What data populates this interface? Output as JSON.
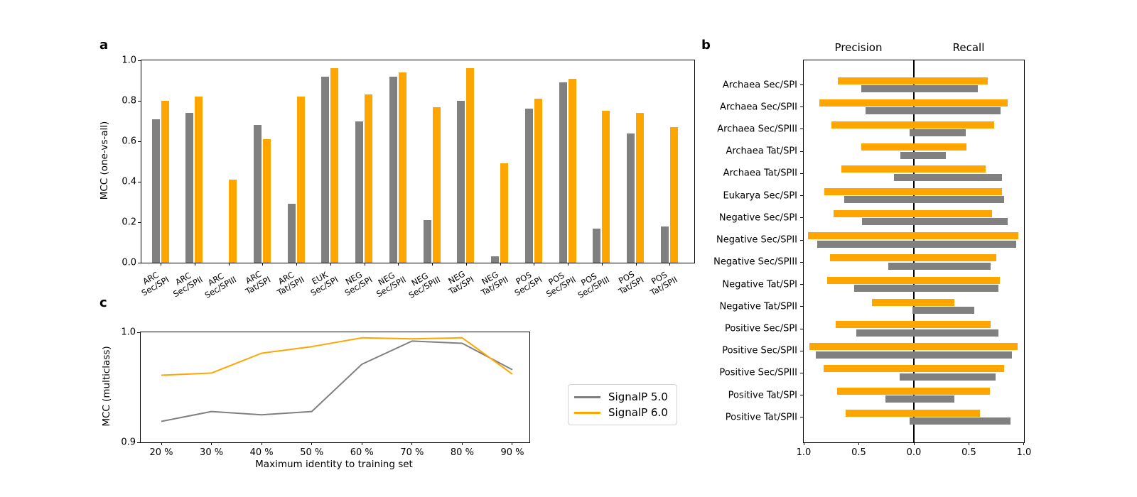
{
  "colors": {
    "signalp5": "#808080",
    "signalp6": "#FFA500",
    "axis": "#000000",
    "background": "#ffffff",
    "legend_border": "#d2d2d2"
  },
  "legend": {
    "items": [
      {
        "label": "SignalP 5.0",
        "color": "#808080"
      },
      {
        "label": "SignalP 6.0",
        "color": "#FFA500"
      }
    ]
  },
  "chart_data": [
    {
      "panel": "a",
      "panel_label": "a",
      "type": "bar",
      "ylabel": "MCC (one-vs-all)",
      "ylim": [
        0.0,
        1.0
      ],
      "yticks": [
        0.0,
        0.2,
        0.4,
        0.6,
        0.8,
        1.0
      ],
      "ytick_labels": [
        "0.0",
        "0.2",
        "0.4",
        "0.6",
        "0.8",
        "1.0"
      ],
      "grid": false,
      "categories": [
        "ARC\nSec/SPI",
        "ARC\nSec/SPII",
        "ARC\nSec/SPIII",
        "ARC\nTat/SPI",
        "ARC\nTat/SPII",
        "EUK\nSec/SPI",
        "NEG\nSec/SPI",
        "NEG\nSec/SPII",
        "NEG\nSec/SPIII",
        "NEG\nTat/SPI",
        "NEG\nTat/SPII",
        "POS\nSec/SPI",
        "POS\nSec/SPII",
        "POS\nSec/SPIII",
        "POS\nTat/SPI",
        "POS\nTat/SPII"
      ],
      "series": [
        {
          "name": "SignalP 5.0",
          "color": "#808080",
          "values": [
            0.71,
            0.74,
            0.0,
            0.68,
            0.29,
            0.92,
            0.7,
            0.92,
            0.21,
            0.8,
            0.03,
            0.76,
            0.89,
            0.17,
            0.64,
            0.18
          ]
        },
        {
          "name": "SignalP 6.0",
          "color": "#FFA500",
          "values": [
            0.8,
            0.82,
            0.41,
            0.61,
            0.82,
            0.96,
            0.83,
            0.94,
            0.77,
            0.96,
            0.49,
            0.81,
            0.91,
            0.75,
            0.74,
            0.67
          ]
        }
      ]
    },
    {
      "panel": "b",
      "panel_label": "b",
      "type": "diverging-horizontal-bar",
      "col_titles": [
        "Precision",
        "Recall"
      ],
      "xtick_labels": [
        "1.0",
        "0.5",
        "0.0",
        "0.5",
        "1.0"
      ],
      "xticks_positions": [
        -1.0,
        -0.5,
        0.0,
        0.5,
        1.0
      ],
      "categories": [
        "Archaea Sec/SPI",
        "Archaea Sec/SPII",
        "Archaea Sec/SPIII",
        "Archaea Tat/SPI",
        "Archaea Tat/SPII",
        "Eukarya Sec/SPI",
        "Negative Sec/SPI",
        "Negative Sec/SPII",
        "Negative Sec/SPIII",
        "Negative Tat/SPI",
        "Negative Tat/SPII",
        "Positive Sec/SPI",
        "Positive Sec/SPII",
        "Positive Sec/SPIII",
        "Positive Tat/SPI",
        "Positive Tat/SPII"
      ],
      "series": [
        {
          "name": "SignalP 6.0",
          "color": "#FFA500",
          "precision": [
            0.69,
            0.86,
            0.75,
            0.48,
            0.66,
            0.81,
            0.73,
            0.96,
            0.76,
            0.79,
            0.38,
            0.71,
            0.95,
            0.82,
            0.7,
            0.62
          ],
          "recall": [
            0.67,
            0.85,
            0.73,
            0.48,
            0.65,
            0.8,
            0.71,
            0.95,
            0.75,
            0.78,
            0.37,
            0.7,
            0.94,
            0.82,
            0.69,
            0.6
          ]
        },
        {
          "name": "SignalP 5.0",
          "color": "#808080",
          "precision": [
            0.48,
            0.44,
            0.04,
            0.12,
            0.18,
            0.63,
            0.47,
            0.88,
            0.23,
            0.54,
            0.01,
            0.52,
            0.89,
            0.13,
            0.26,
            0.04
          ],
          "recall": [
            0.58,
            0.79,
            0.47,
            0.29,
            0.8,
            0.82,
            0.85,
            0.93,
            0.7,
            0.77,
            0.55,
            0.77,
            0.89,
            0.74,
            0.37,
            0.88
          ]
        }
      ]
    },
    {
      "panel": "c",
      "panel_label": "c",
      "type": "line",
      "ylabel": "MCC (multiclass)",
      "xlabel": "Maximum identity to training set",
      "ylim": [
        0.9,
        1.0
      ],
      "yticks": [
        0.9,
        1.0
      ],
      "ytick_labels": [
        "0.9",
        "1.0"
      ],
      "categories": [
        "20 %",
        "30 %",
        "40 %",
        "50 %",
        "60 %",
        "70 %",
        "80 %",
        "90 %"
      ],
      "series": [
        {
          "name": "SignalP 5.0",
          "color": "#808080",
          "values": [
            0.919,
            0.928,
            0.925,
            0.928,
            0.971,
            0.992,
            0.99,
            0.966
          ]
        },
        {
          "name": "SignalP 6.0",
          "color": "#FFA500",
          "values": [
            0.961,
            0.963,
            0.981,
            0.987,
            0.995,
            0.994,
            0.995,
            0.962
          ]
        }
      ]
    }
  ]
}
